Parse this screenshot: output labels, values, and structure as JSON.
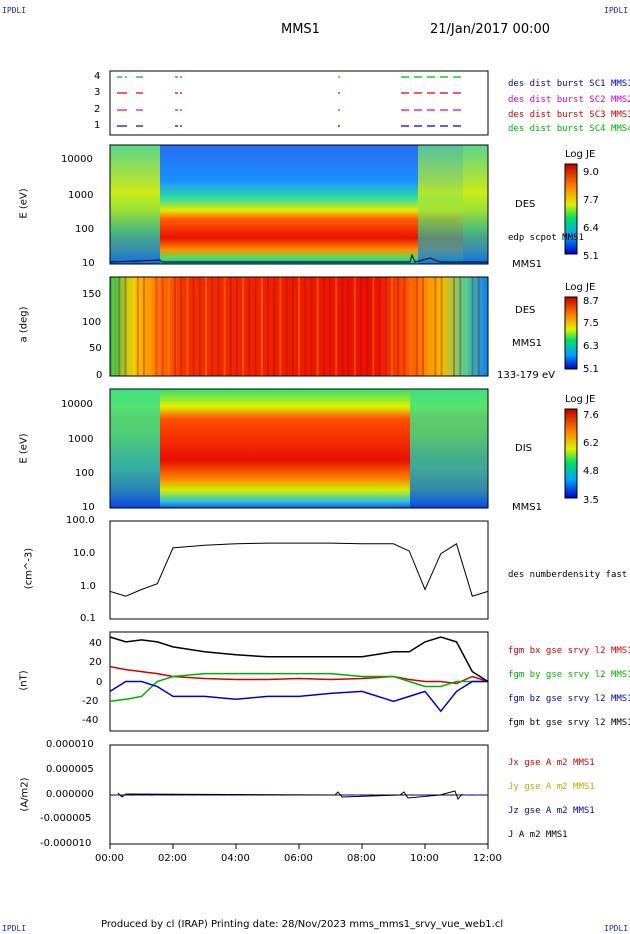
{
  "corners": {
    "tl": "IPDLI",
    "tr": "IPDLI",
    "bl": "IPDLI",
    "br": "IPDLI"
  },
  "header": {
    "spacecraft": "MMS1",
    "datetime": "21/Jan/2017 00:00"
  },
  "footer": {
    "text": "Produced by cl (IRAP)   Printing date: 28/Nov/2023   mms_mms1_srvy_vue_web1.cl"
  },
  "colors": {
    "blue": "#0000c8",
    "magenta": "#d000d0",
    "red": "#d00000",
    "green": "#00b000",
    "black": "#000000"
  },
  "chart_data": [
    {
      "type": "line",
      "name": "burst",
      "yticks": [
        "1",
        "2",
        "3",
        "4"
      ],
      "legend": [
        {
          "label": "des dist burst SC1 MMS1",
          "color": "#0000c8"
        },
        {
          "label": "des dist burst SC2 MMS2",
          "color": "#d000d0"
        },
        {
          "label": "des dist burst SC3 MMS3",
          "color": "#d00000"
        },
        {
          "label": "des dist burst SC4 MMS4",
          "color": "#00b000"
        }
      ]
    },
    {
      "type": "heatmap",
      "name": "des-energy",
      "ylabel": "E (eV)",
      "yticks": [
        "10000",
        "1000",
        "100",
        "10"
      ],
      "label": "DES",
      "overlay_label": "edp scpot MMS1",
      "sc_label": "MMS1",
      "colorbar": {
        "title": "Log JE",
        "ticks": [
          "9.0",
          "7.7",
          "6.4",
          "5.1"
        ],
        "range": [
          5.1,
          9.0
        ]
      }
    },
    {
      "type": "heatmap",
      "name": "des-pitch",
      "ylabel": "a (deg)",
      "yticks": [
        "150",
        "100",
        "50",
        "0"
      ],
      "label": "DES",
      "sc_label": "MMS1",
      "energy_label": "133-179 eV",
      "colorbar": {
        "title": "Log JE",
        "ticks": [
          "8.7",
          "7.5",
          "6.3",
          "5.1"
        ],
        "range": [
          5.1,
          8.7
        ]
      }
    },
    {
      "type": "heatmap",
      "name": "dis-energy",
      "ylabel": "E (eV)",
      "yticks": [
        "10000",
        "1000",
        "100",
        "10"
      ],
      "label": "DIS",
      "sc_label": "MMS1",
      "colorbar": {
        "title": "Log JE",
        "ticks": [
          "7.6",
          "6.2",
          "4.8",
          "3.5"
        ],
        "range": [
          3.5,
          7.6
        ]
      }
    },
    {
      "type": "line",
      "name": "density",
      "ylabel": "(cm^-3)",
      "yticks": [
        "100.0",
        "10.0",
        "1.0",
        "0.1"
      ],
      "scale": "log",
      "ylim": [
        0.1,
        100
      ],
      "x": [
        "00:00",
        "00:30",
        "01:00",
        "01:30",
        "02:00",
        "03:00",
        "04:00",
        "05:00",
        "06:00",
        "07:00",
        "08:00",
        "09:00",
        "09:30",
        "10:00",
        "10:30",
        "11:00",
        "11:30",
        "12:00"
      ],
      "series": [
        {
          "name": "des numberdensity fast M",
          "values": [
            0.7,
            0.5,
            0.8,
            1.2,
            15,
            18,
            20,
            21,
            21,
            21,
            20,
            20,
            12,
            0.8,
            10,
            20,
            0.5,
            0.7
          ]
        }
      ]
    },
    {
      "type": "line",
      "name": "bfield",
      "ylabel": "(nT)",
      "yticks": [
        "40",
        "20",
        "0",
        "-20",
        "-40"
      ],
      "ylim": [
        -50,
        50
      ],
      "x": [
        "00:00",
        "00:30",
        "01:00",
        "01:30",
        "02:00",
        "03:00",
        "04:00",
        "05:00",
        "06:00",
        "07:00",
        "08:00",
        "09:00",
        "09:30",
        "10:00",
        "10:30",
        "11:00",
        "11:30",
        "12:00"
      ],
      "series": [
        {
          "name": "fgm bx gse srvy l2 MMS1",
          "color": "#d00000",
          "values": [
            15,
            12,
            10,
            8,
            5,
            3,
            2,
            2,
            3,
            2,
            3,
            5,
            2,
            0,
            0,
            -2,
            5,
            0
          ]
        },
        {
          "name": "fgm by gse srvy l2 MMS1",
          "color": "#00b000",
          "values": [
            -20,
            -18,
            -15,
            0,
            5,
            8,
            8,
            8,
            8,
            8,
            5,
            5,
            0,
            -5,
            -5,
            0,
            0,
            0
          ]
        },
        {
          "name": "fgm bz gse srvy l2 MMS1",
          "color": "#0000c8",
          "values": [
            -10,
            0,
            0,
            -5,
            -15,
            -15,
            -18,
            -15,
            -15,
            -12,
            -10,
            -20,
            -15,
            -10,
            -30,
            -10,
            0,
            0
          ]
        },
        {
          "name": "fgm bt gse srvy l2 MMS1",
          "color": "#000000",
          "values": [
            45,
            40,
            42,
            40,
            35,
            30,
            27,
            25,
            25,
            25,
            25,
            30,
            30,
            40,
            45,
            40,
            10,
            0
          ]
        }
      ]
    },
    {
      "type": "line",
      "name": "current",
      "ylabel": "(A/m2)",
      "yticks": [
        "0.000010",
        "0.000005",
        "0.000000",
        "-0.000005",
        "-0.000010"
      ],
      "ylim": [
        -1e-05,
        1e-05
      ],
      "xticks": [
        "00:00",
        "02:00",
        "04:00",
        "06:00",
        "08:00",
        "10:00",
        "12:00"
      ],
      "series": [
        {
          "name": "Jx gse A m2 MMS1",
          "color": "#d00000"
        },
        {
          "name": "Jy gse A m2 MMS1",
          "color": "#b0b000"
        },
        {
          "name": "Jz gse A m2 MMS1",
          "color": "#0000c8"
        },
        {
          "name": "J A m2 MMS1",
          "color": "#000000"
        }
      ]
    }
  ]
}
